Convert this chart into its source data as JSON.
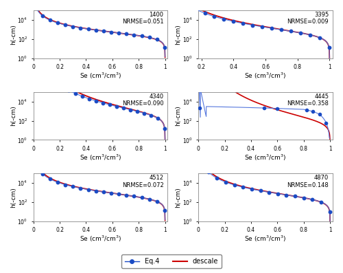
{
  "subplots": [
    {
      "title": "1400",
      "nrmse": "NRMSE=0.051",
      "xlim": [
        0,
        1.02
      ],
      "Se_min": 0.0
    },
    {
      "title": "3395",
      "nrmse": "NRMSE=0.009",
      "xlim": [
        0.18,
        1.02
      ],
      "Se_min": 0.2
    },
    {
      "title": "4340",
      "nrmse": "NRMSE=0.090",
      "xlim": [
        0,
        1.02
      ],
      "Se_min": 0.0
    },
    {
      "title": "4445",
      "nrmse": "NRMSE=0.358",
      "xlim": [
        0,
        1.02
      ],
      "Se_min": 0.0
    },
    {
      "title": "4512",
      "nrmse": "NRMSE=0.072",
      "xlim": [
        0,
        1.02
      ],
      "Se_min": 0.0
    },
    {
      "title": "4870",
      "nrmse": "NRMSE=0.148",
      "xlim": [
        0,
        1.02
      ],
      "Se_min": 0.0
    }
  ],
  "line_color": "#CC0000",
  "dot_color": "#1A4BC4",
  "dot_line_color": "#5577DD",
  "ylabel": "h(-cm)",
  "xlabel": "Se (cm$^3$/cm$^3$)",
  "legend_eq4": "Eq.4",
  "legend_descale": "descale",
  "bg_color": "#FFFFFF",
  "ylim": [
    1.0,
    100000.0
  ],
  "vg_params": {
    "1400": {
      "alpha": 0.004,
      "n": 1.55,
      "Se_min": 0.01,
      "n_dots": 18
    },
    "3395": {
      "alpha": 0.003,
      "n": 1.28,
      "Se_min": 0.22,
      "n_dots": 14
    },
    "4340": {
      "alpha": 0.0025,
      "n": 1.2,
      "Se_min": 0.01,
      "n_dots": 20
    },
    "4512": {
      "alpha": 0.003,
      "n": 1.45,
      "Se_min": 0.01,
      "n_dots": 18
    },
    "4870": {
      "alpha": 0.004,
      "n": 1.38,
      "Se_min": 0.01,
      "n_dots": 16
    }
  }
}
